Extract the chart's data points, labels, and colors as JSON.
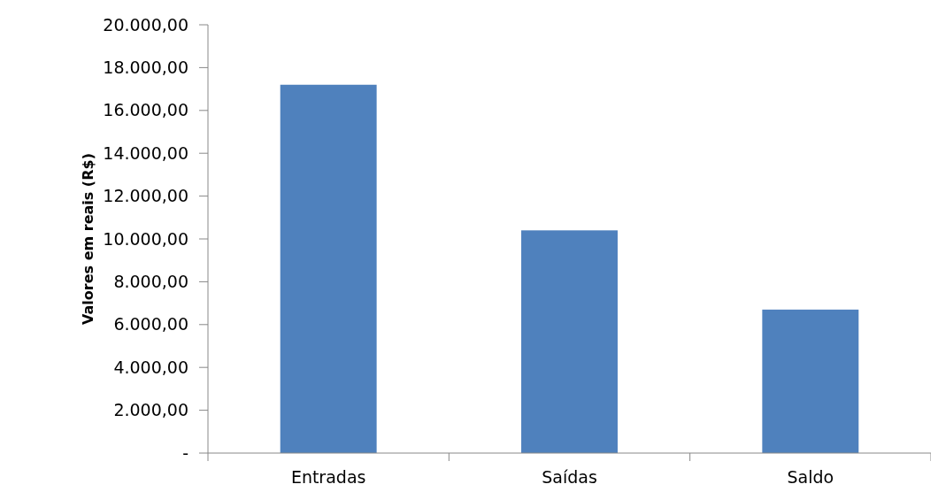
{
  "chart_data": {
    "type": "bar",
    "ylabel": "Valores em reais (R$)",
    "categories": [
      "Entradas",
      "Saídas",
      "Saldo"
    ],
    "values": [
      17200,
      10400,
      6700
    ],
    "color": "#4f81bd",
    "ylim": [
      0,
      20000
    ],
    "yticks": [
      {
        "value": 0,
        "label": "-"
      },
      {
        "value": 2000,
        "label": "2.000,00"
      },
      {
        "value": 4000,
        "label": "4.000,00"
      },
      {
        "value": 6000,
        "label": "6.000,00"
      },
      {
        "value": 8000,
        "label": "8.000,00"
      },
      {
        "value": 10000,
        "label": "10.000,00"
      },
      {
        "value": 12000,
        "label": "12.000,00"
      },
      {
        "value": 14000,
        "label": "14.000,00"
      },
      {
        "value": 16000,
        "label": "16.000,00"
      },
      {
        "value": 18000,
        "label": "18.000,00"
      },
      {
        "value": 20000,
        "label": "20.000,00"
      }
    ],
    "grid": false
  }
}
